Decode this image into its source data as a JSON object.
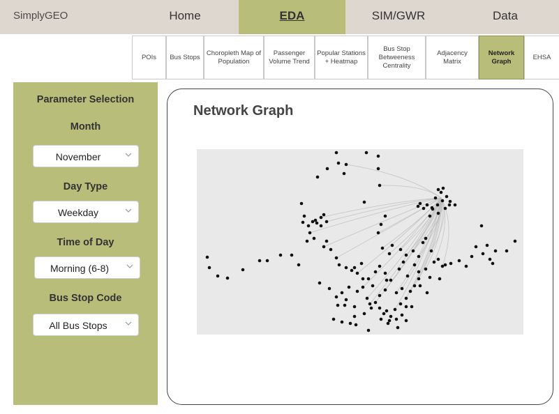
{
  "app": {
    "brand": "SimplyGEO"
  },
  "nav": {
    "items": [
      "Home",
      "EDA",
      "SIM/GWR",
      "Data"
    ],
    "active": "EDA",
    "accent_color": "#b8bd79",
    "bar_color": "#ded7cf"
  },
  "subnav": {
    "items": [
      "POIs",
      "Bus Stops",
      "Choropleth Map of Population",
      "Passenger Volume Trend",
      "Popular Stations + Heatmap",
      "Bus Stop Betweeness Centrality",
      "Adjacency Matrix",
      "Network Graph",
      "EHSA"
    ],
    "active": "Network Graph"
  },
  "sidebar": {
    "title": "Parameter Selection",
    "month": {
      "label": "Month",
      "value": "November"
    },
    "day_type": {
      "label": "Day Type",
      "value": "Weekday"
    },
    "time_of_day": {
      "label": "Time of Day",
      "value": "Morning (6-8)"
    },
    "bus_stop_code": {
      "label": "Bus Stop Code",
      "value": "All Bus Stops"
    }
  },
  "main": {
    "title": "Network Graph"
  },
  "graph": {
    "node_color": "#111111",
    "edge_color": "#bdbdbd",
    "background": "#e9e9e9"
  }
}
